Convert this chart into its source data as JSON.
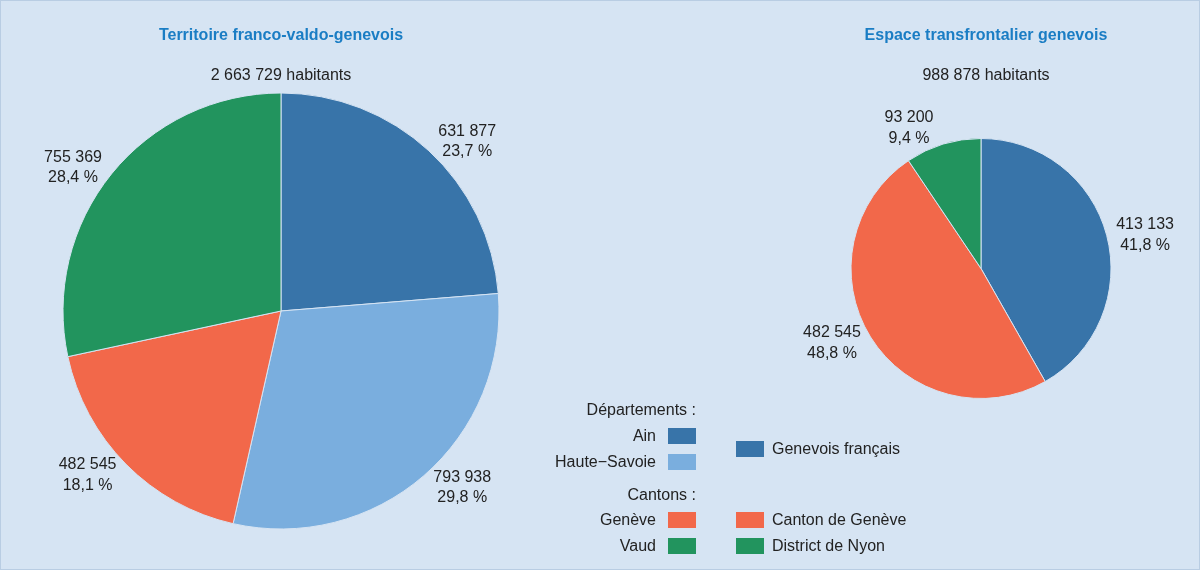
{
  "chart_data": [
    {
      "type": "pie",
      "title": "Territoire franco-valdo-genevois",
      "subtitle": "2 663 729 habitants",
      "categories": [
        "Ain",
        "Haute−Savoie",
        "Genève",
        "Vaud"
      ],
      "values": [
        631877,
        793938,
        482545,
        755369
      ],
      "colors": [
        "#3874a9",
        "#7aaede",
        "#f2684a",
        "#22945e"
      ],
      "value_labels": [
        "631 877\n23,7 %",
        "793 938\n29,8 %",
        "482 545\n18,1 %",
        "755 369\n28,4 %"
      ],
      "legend": "bottom right",
      "legend_title": "Départements :",
      "annotations": [
        "Cantons :"
      ]
    },
    {
      "type": "pie",
      "title": "Espace transfrontalier genevois",
      "subtitle": "988 878 habitants",
      "categories": [
        "Genevois français",
        "Canton de Genève",
        "District de Nyon"
      ],
      "values": [
        413133,
        482545,
        93200
      ],
      "colors": [
        "#3874a9",
        "#f2684a",
        "#22945e"
      ],
      "value_labels": [
        "413 133\n41,8 %",
        "482 545\n48,8 %",
        "93 200\n9,4 %"
      ],
      "legend": "bottom left"
    }
  ]
}
